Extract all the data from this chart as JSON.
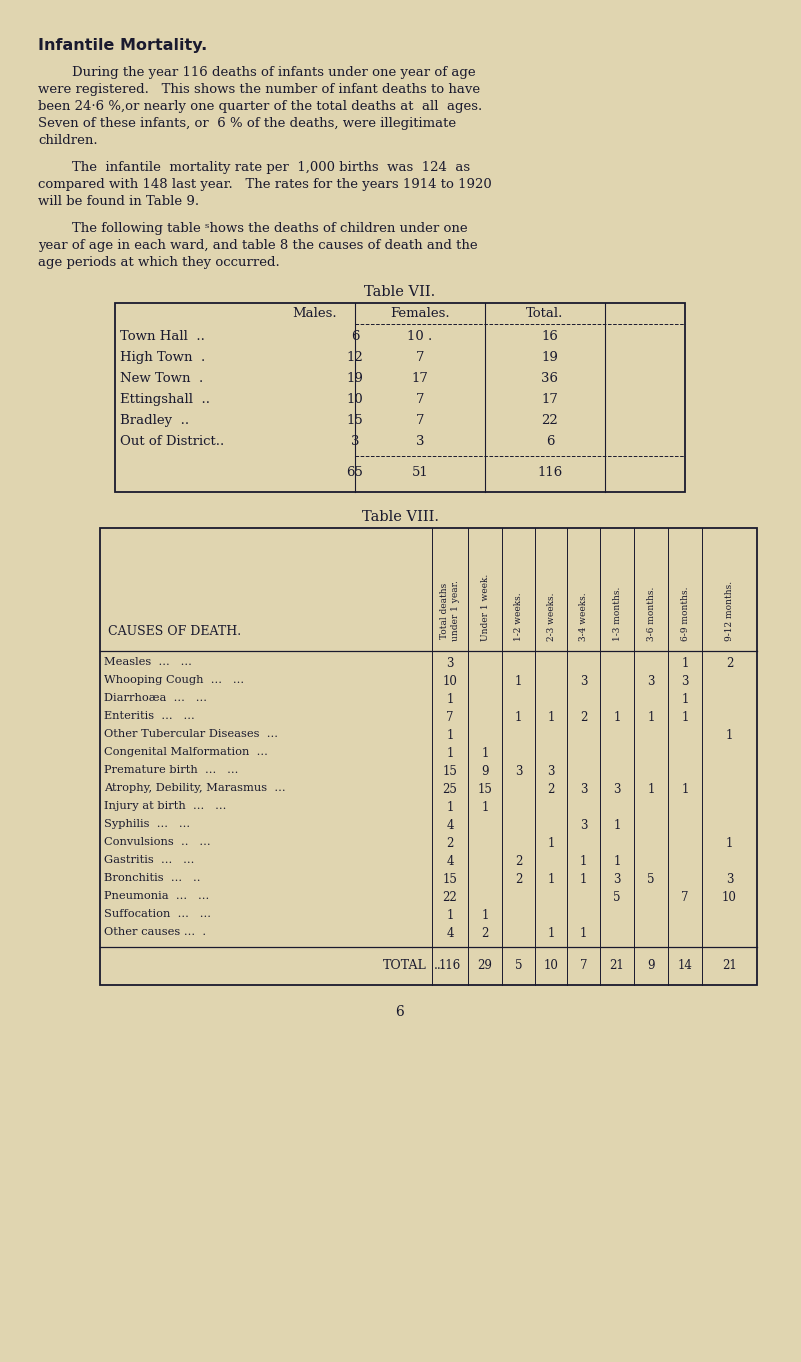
{
  "bg_color": "#e0d5b0",
  "text_color": "#1a1a2e",
  "title": "Infantile Mortality.",
  "para1_indent": "        During the year 116 deaths of infants under one year of age",
  "para1_rest": [
    "were registered.   This shows the number of infant deaths to have",
    "been 24·6 %,or nearly one quarter of the total deaths at  all  ages.",
    "Seven of these infants, or  6 % of the deaths, were illegitimate",
    "children."
  ],
  "para2_indent": "        The  infantile  mortality rate per  1,000 births  was  124  as",
  "para2_rest": [
    "compared with 148 last year.   The rates for the years 1914 to 1920",
    "will be found in Table 9."
  ],
  "para3_indent": "        The following table ˢhows the deaths of children under one",
  "para3_rest": [
    "year of age in each ward, and table 8 the causes of death and the",
    "age periods at which they occurred."
  ],
  "table7_title": "Table VII.",
  "table7_headers": [
    "Males.",
    "Females.",
    "Total."
  ],
  "table7_rows": [
    [
      "Town Hall",
      "..",
      "6",
      "10 .",
      "16"
    ],
    [
      "High Town",
      ".",
      "12",
      "7",
      "19"
    ],
    [
      "New Town",
      ".",
      "19",
      "17",
      "36"
    ],
    [
      "Ettingshall",
      "..",
      "10",
      "7",
      "17"
    ],
    [
      "Bradley",
      "..",
      "15",
      "7",
      "22"
    ],
    [
      "Out of District..",
      "",
      "3",
      "3",
      "6"
    ]
  ],
  "table7_total": [
    "65",
    "51",
    "116"
  ],
  "table8_title": "Table VIII.",
  "table8_col_headers": [
    "Total deaths\nunder 1 year.",
    "Under 1 week.",
    "1-2 weeks.",
    "2-3 weeks.",
    "3-4 weeks.",
    "1-3 months.",
    "3-6 months.",
    "6-9 months.",
    "9-12 months."
  ],
  "table8_rows": [
    [
      "Measles",
      "...",
      "...",
      "3",
      "",
      "",
      "",
      "",
      "",
      "",
      "1",
      "2"
    ],
    [
      "Whooping Cough",
      "...",
      "...",
      "10",
      "",
      "1",
      "",
      "3",
      "",
      "3",
      "3",
      ""
    ],
    [
      "Diarrhoæa",
      "...",
      "...",
      "1",
      "",
      "",
      "",
      "",
      "",
      "",
      "1",
      ""
    ],
    [
      "Enteritis",
      "...",
      "...",
      "7",
      "",
      "1",
      "1",
      "2",
      "1",
      "1",
      "1",
      ""
    ],
    [
      "Other Tubercular Diseases",
      "...",
      "",
      "1",
      "",
      "",
      "",
      "",
      "",
      "",
      "",
      "1"
    ],
    [
      "Congenital Malformation",
      "...",
      "",
      "1",
      "1",
      "",
      "",
      "",
      "",
      "",
      "",
      ""
    ],
    [
      "Premature birth",
      "...",
      "...",
      "15",
      "9",
      "3",
      "3",
      "",
      "",
      "",
      "",
      ""
    ],
    [
      "Atrophy, Debility, Marasmus",
      "...",
      "",
      "25",
      "15",
      "",
      "2",
      "3",
      "3",
      "1",
      "1",
      ""
    ],
    [
      "Injury at birth",
      "...",
      "...",
      "1",
      "1",
      "",
      "",
      "",
      "",
      "",
      "",
      ""
    ],
    [
      "Syphilis",
      "...",
      "...",
      "4",
      "",
      "",
      "",
      "3",
      "1",
      "",
      "",
      ""
    ],
    [
      "Convulsions",
      "..",
      "...",
      "2",
      "",
      "",
      "1",
      "",
      "",
      "",
      "",
      "1"
    ],
    [
      "Gastritis",
      "...",
      "...",
      "4",
      "",
      "2",
      "",
      "1",
      "1",
      "",
      "",
      ""
    ],
    [
      "Bronchitis",
      "...",
      "..",
      "15",
      "",
      "2",
      "1",
      "1",
      "3",
      "5",
      "",
      "3"
    ],
    [
      "Pneumonia",
      "...",
      "...",
      "22",
      "",
      "",
      "",
      "",
      "5",
      "",
      "7",
      "10"
    ],
    [
      "Suffocation",
      "...",
      "...",
      "1",
      "1",
      "",
      "",
      "",
      "",
      "",
      "",
      ""
    ],
    [
      "Other causes ...",
      ".",
      "",
      "4",
      "2",
      "",
      "1",
      "1",
      "",
      "",
      "",
      ""
    ]
  ],
  "table8_total": [
    "116",
    "29",
    "5",
    "10",
    "7",
    "21",
    "9",
    "14",
    "21"
  ],
  "page_number": "6"
}
